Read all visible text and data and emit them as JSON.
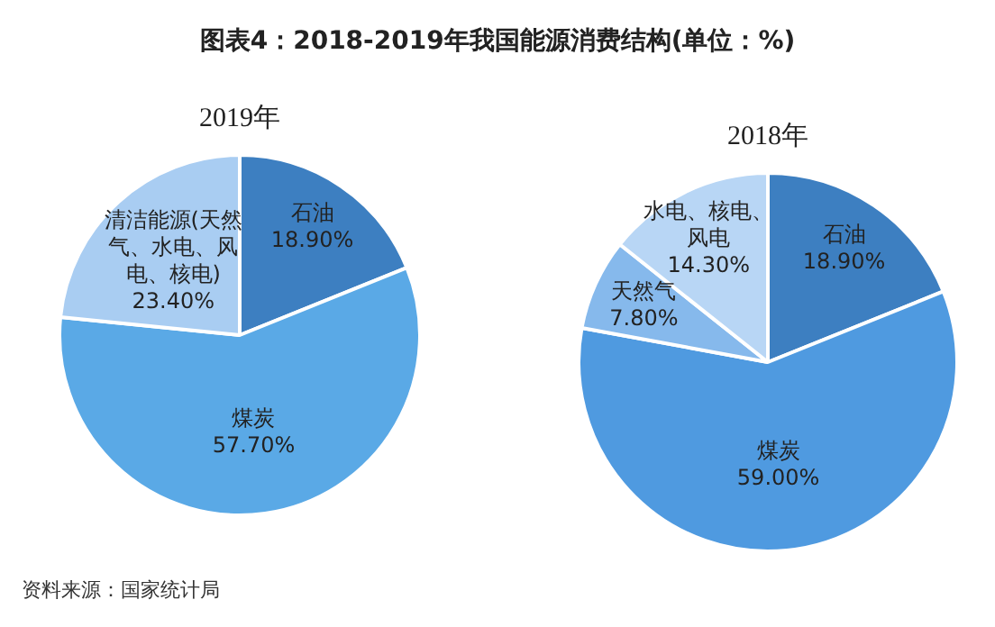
{
  "chart_data": [
    {
      "type": "pie",
      "title": "2019年",
      "annotations": [
        "图表4：2018-2019年我国能源消费结构(单位：%)",
        "资料来源：国家统计局"
      ],
      "categories": [
        "石油",
        "煤炭",
        "清洁能源(天然气、水电、风电、核电)"
      ],
      "values": [
        18.9,
        57.7,
        23.4
      ],
      "value_labels": [
        "18.90%",
        "57.70%",
        "23.40%"
      ],
      "colors": [
        "#3d7fc1",
        "#5aa9e6",
        "#a9cdf2"
      ],
      "legend": false
    },
    {
      "type": "pie",
      "title": "2018年",
      "categories": [
        "石油",
        "煤炭",
        "天然气",
        "水电、核电、风电"
      ],
      "values": [
        18.9,
        59.0,
        7.8,
        14.3
      ],
      "value_labels": [
        "18.90%",
        "59.00%",
        "7.80%",
        "14.30%"
      ],
      "colors": [
        "#3d7fc1",
        "#4f9ae0",
        "#86b9ec",
        "#b8d6f5"
      ],
      "legend": false
    }
  ]
}
